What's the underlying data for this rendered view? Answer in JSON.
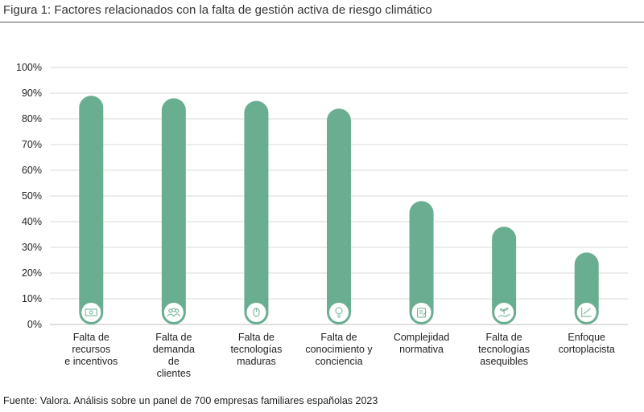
{
  "figure": {
    "title": "Figura 1: Factores relacionados con la falta de gestión activa de riesgo climático",
    "source": "Fuente: Valora. Análisis sobre un panel de 700 empresas familiares españolas 2023"
  },
  "chart_data": {
    "type": "bar",
    "title": "Figura 1: Factores relacionados con la falta de gestión activa de riesgo climático",
    "xlabel": "",
    "ylabel": "",
    "ylim": [
      0,
      100
    ],
    "yticks": [
      "0%",
      "10%",
      "20%",
      "30%",
      "40%",
      "50%",
      "60%",
      "70%",
      "80%",
      "90%",
      "100%"
    ],
    "grid": true,
    "categories": [
      "Falta de\nrecursos\ne incentivos",
      "Falta de\ndemanda\nde\nclientes",
      "Falta de\ntecnologías\nmaduras",
      "Falta de\nconocimiento y\nconciencia",
      "Complejidad\nnormativa",
      "Falta de\ntecnologías\nasequibles",
      "Enfoque\ncortoplacista"
    ],
    "values": [
      89,
      88,
      87,
      84,
      48,
      38,
      28
    ],
    "icons": [
      "money-icon",
      "people-icon",
      "mouse-icon",
      "lightbulb-icon",
      "document-icon",
      "hand-plant-icon",
      "chart-icon"
    ],
    "bar_color": "#6aae91",
    "grid_color": "#d9d9d9"
  }
}
